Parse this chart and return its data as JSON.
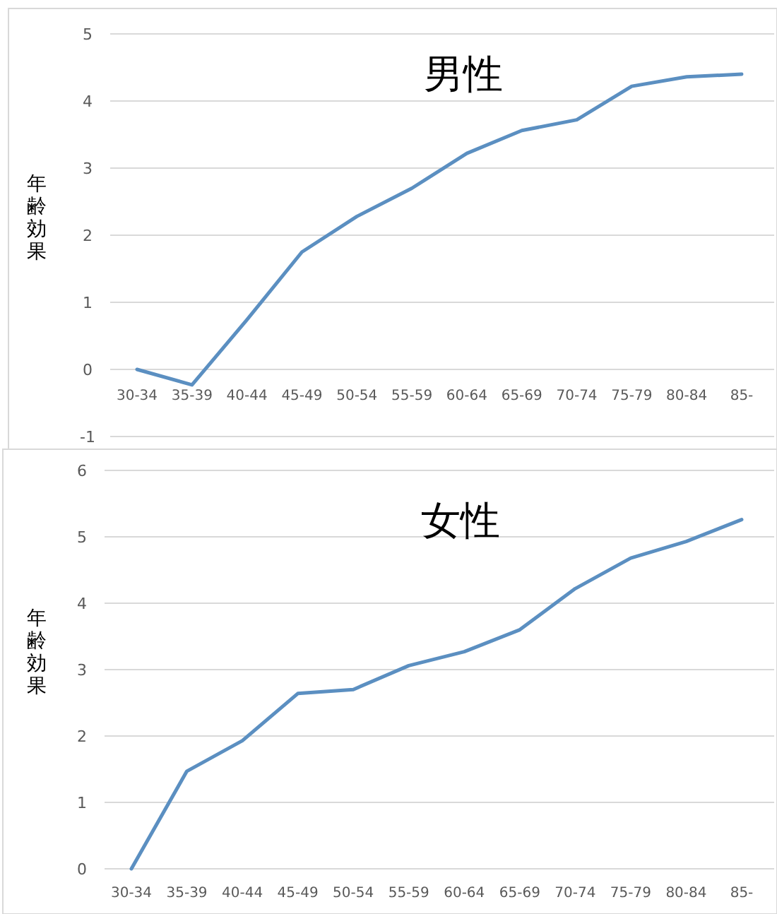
{
  "chart_data": [
    {
      "type": "line",
      "title": "男性",
      "ylabel": "年齢効果",
      "categories": [
        "30-34",
        "35-39",
        "40-44",
        "45-49",
        "50-54",
        "55-59",
        "60-64",
        "65-69",
        "70-74",
        "75-79",
        "80-84",
        "85-"
      ],
      "series": [
        {
          "color": "#5b8fc1",
          "values": [
            0,
            -0.23,
            0.74,
            1.75,
            2.28,
            2.7,
            3.22,
            3.56,
            3.72,
            4.22,
            4.36,
            4.4
          ]
        }
      ],
      "ylim": [
        -1,
        5
      ],
      "yticks": [
        -1,
        0,
        1,
        2,
        3,
        4,
        5
      ],
      "grid": "y",
      "marker": "none",
      "line_style": "solid"
    },
    {
      "type": "line",
      "title": "女性",
      "ylabel": "年齢効果",
      "categories": [
        "30-34",
        "35-39",
        "40-44",
        "45-49",
        "50-54",
        "55-59",
        "60-64",
        "65-69",
        "70-74",
        "75-79",
        "80-84",
        "85-"
      ],
      "series": [
        {
          "color": "#5b8fc1",
          "values": [
            0,
            1.47,
            1.93,
            2.64,
            2.7,
            3.06,
            3.27,
            3.6,
            4.22,
            4.68,
            4.93,
            5.26
          ]
        }
      ],
      "ylim": [
        0,
        6
      ],
      "yticks": [
        0,
        1,
        2,
        3,
        4,
        5,
        6
      ],
      "grid": "y",
      "marker": "none",
      "line_style": "solid"
    }
  ]
}
